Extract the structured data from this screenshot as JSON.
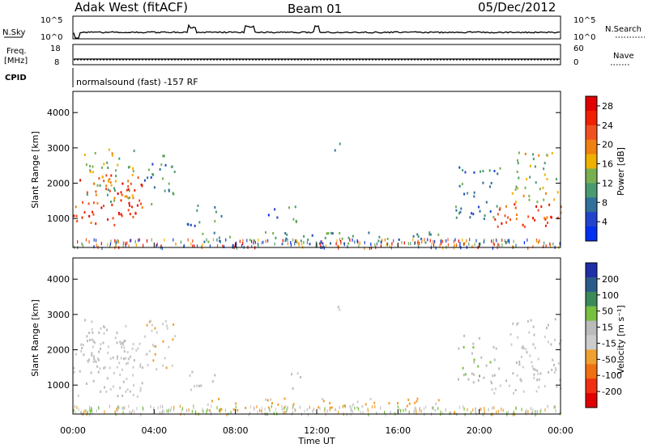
{
  "header": {
    "station": "Adak West (fitACF)",
    "beam": "Beam 01",
    "date": "05/Dec/2012"
  },
  "top_panels": {
    "nsky_label": "N.Sky",
    "nsearch_label": "N.Search",
    "noise_ticks_left": [
      "10^5",
      "10^0"
    ],
    "noise_ticks_right": [
      "10^5",
      "10^0"
    ],
    "freq_label": "Freq.",
    "freq_unit": "[MHz]",
    "freq_ticks": [
      "18",
      "8"
    ],
    "nave_label": "Nave",
    "nave_ticks": [
      "60",
      "0"
    ],
    "cpid_label": "CPID",
    "cpid_text": "normalsound (fast) -157 RF"
  },
  "colors": {
    "power_scale": [
      "#0030f0",
      "#2244cc",
      "#30709a",
      "#4a9a70",
      "#78b050",
      "#f0b000",
      "#f08010",
      "#f05020",
      "#f02000",
      "#e00000"
    ],
    "velocity_scale": [
      "#1f2fa8",
      "#2a5b8a",
      "#3b8a5a",
      "#77c040",
      "#bbbbbb",
      "#cccccc",
      "#f0a030",
      "#f07010",
      "#f03010",
      "#e00000"
    ]
  },
  "chart_data": [
    {
      "type": "heatmap",
      "name": "power",
      "ylabel": "Slant Range [km]",
      "xlabel": "",
      "ylim": [
        180,
        4600
      ],
      "xlim": [
        0,
        24
      ],
      "yticks": [
        "1000",
        "2000",
        "3000",
        "4000"
      ],
      "xticks": [
        "00:00",
        "04:00",
        "08:00",
        "12:00",
        "16:00",
        "20:00",
        "00:00"
      ],
      "colorbar": {
        "label": "Power [dB]",
        "ticks": [
          "4",
          "8",
          "12",
          "16",
          "20",
          "24",
          "28"
        ],
        "range": [
          0,
          30
        ]
      },
      "regions": [
        {
          "t": [
            0.0,
            3.4
          ],
          "r": [
            700,
            2300
          ],
          "v": 24
        },
        {
          "t": [
            0.5,
            3.0
          ],
          "r": [
            1500,
            3000
          ],
          "v": 14
        },
        {
          "t": [
            3.5,
            5.0
          ],
          "r": [
            1400,
            2900
          ],
          "v": 10
        },
        {
          "t": [
            5.6,
            6.3
          ],
          "r": [
            800,
            1500
          ],
          "v": 8
        },
        {
          "t": [
            6.8,
            7.3
          ],
          "r": [
            900,
            1400
          ],
          "v": 10
        },
        {
          "t": [
            9.5,
            10.2
          ],
          "r": [
            1000,
            1300
          ],
          "v": 6
        },
        {
          "t": [
            10.5,
            11.2
          ],
          "r": [
            800,
            1500
          ],
          "v": 10
        },
        {
          "t": [
            12.8,
            13.2
          ],
          "r": [
            2950,
            3250
          ],
          "v": 10
        },
        {
          "t": [
            6.0,
            18.0
          ],
          "r": [
            300,
            650
          ],
          "v": 10
        },
        {
          "t": [
            18.8,
            21.0
          ],
          "r": [
            1000,
            2500
          ],
          "v": 8
        },
        {
          "t": [
            20.5,
            24.0
          ],
          "r": [
            800,
            1500
          ],
          "v": 24
        },
        {
          "t": [
            21.5,
            24.0
          ],
          "r": [
            1500,
            2900
          ],
          "v": 14
        }
      ]
    },
    {
      "type": "heatmap",
      "name": "velocity",
      "ylabel": "Slant Range [km]",
      "xlabel": "Time UT",
      "ylim": [
        180,
        4600
      ],
      "xlim": [
        0,
        24
      ],
      "yticks": [
        "1000",
        "2000",
        "3000",
        "4000"
      ],
      "xticks": [
        "00:00",
        "04:00",
        "08:00",
        "12:00",
        "16:00",
        "20:00",
        "00:00"
      ],
      "colorbar": {
        "label": "Velocity [m s⁻¹]",
        "ticks": [
          "200",
          "100",
          "50",
          "15",
          "-15",
          "-50",
          "-100",
          "-200"
        ],
        "range": [
          -250,
          250
        ]
      },
      "regions": [
        {
          "t": [
            0.0,
            3.4
          ],
          "r": [
            700,
            2300
          ],
          "v": 0
        },
        {
          "t": [
            0.5,
            3.0
          ],
          "r": [
            1500,
            3000
          ],
          "v": 0
        },
        {
          "t": [
            3.5,
            5.0
          ],
          "r": [
            1400,
            2900
          ],
          "v": -40
        },
        {
          "t": [
            5.6,
            6.3
          ],
          "r": [
            800,
            1500
          ],
          "v": 0
        },
        {
          "t": [
            6.8,
            7.3
          ],
          "r": [
            900,
            1400
          ],
          "v": 0
        },
        {
          "t": [
            10.5,
            11.2
          ],
          "r": [
            800,
            1500
          ],
          "v": 0
        },
        {
          "t": [
            12.8,
            13.2
          ],
          "r": [
            2950,
            3250
          ],
          "v": 0
        },
        {
          "t": [
            6.0,
            18.0
          ],
          "r": [
            300,
            650
          ],
          "v": -60
        },
        {
          "t": [
            18.8,
            21.0
          ],
          "r": [
            1000,
            2500
          ],
          "v": 40
        },
        {
          "t": [
            20.5,
            24.0
          ],
          "r": [
            800,
            1500
          ],
          "v": 0
        },
        {
          "t": [
            21.5,
            24.0
          ],
          "r": [
            1500,
            2900
          ],
          "v": 0
        }
      ]
    }
  ]
}
